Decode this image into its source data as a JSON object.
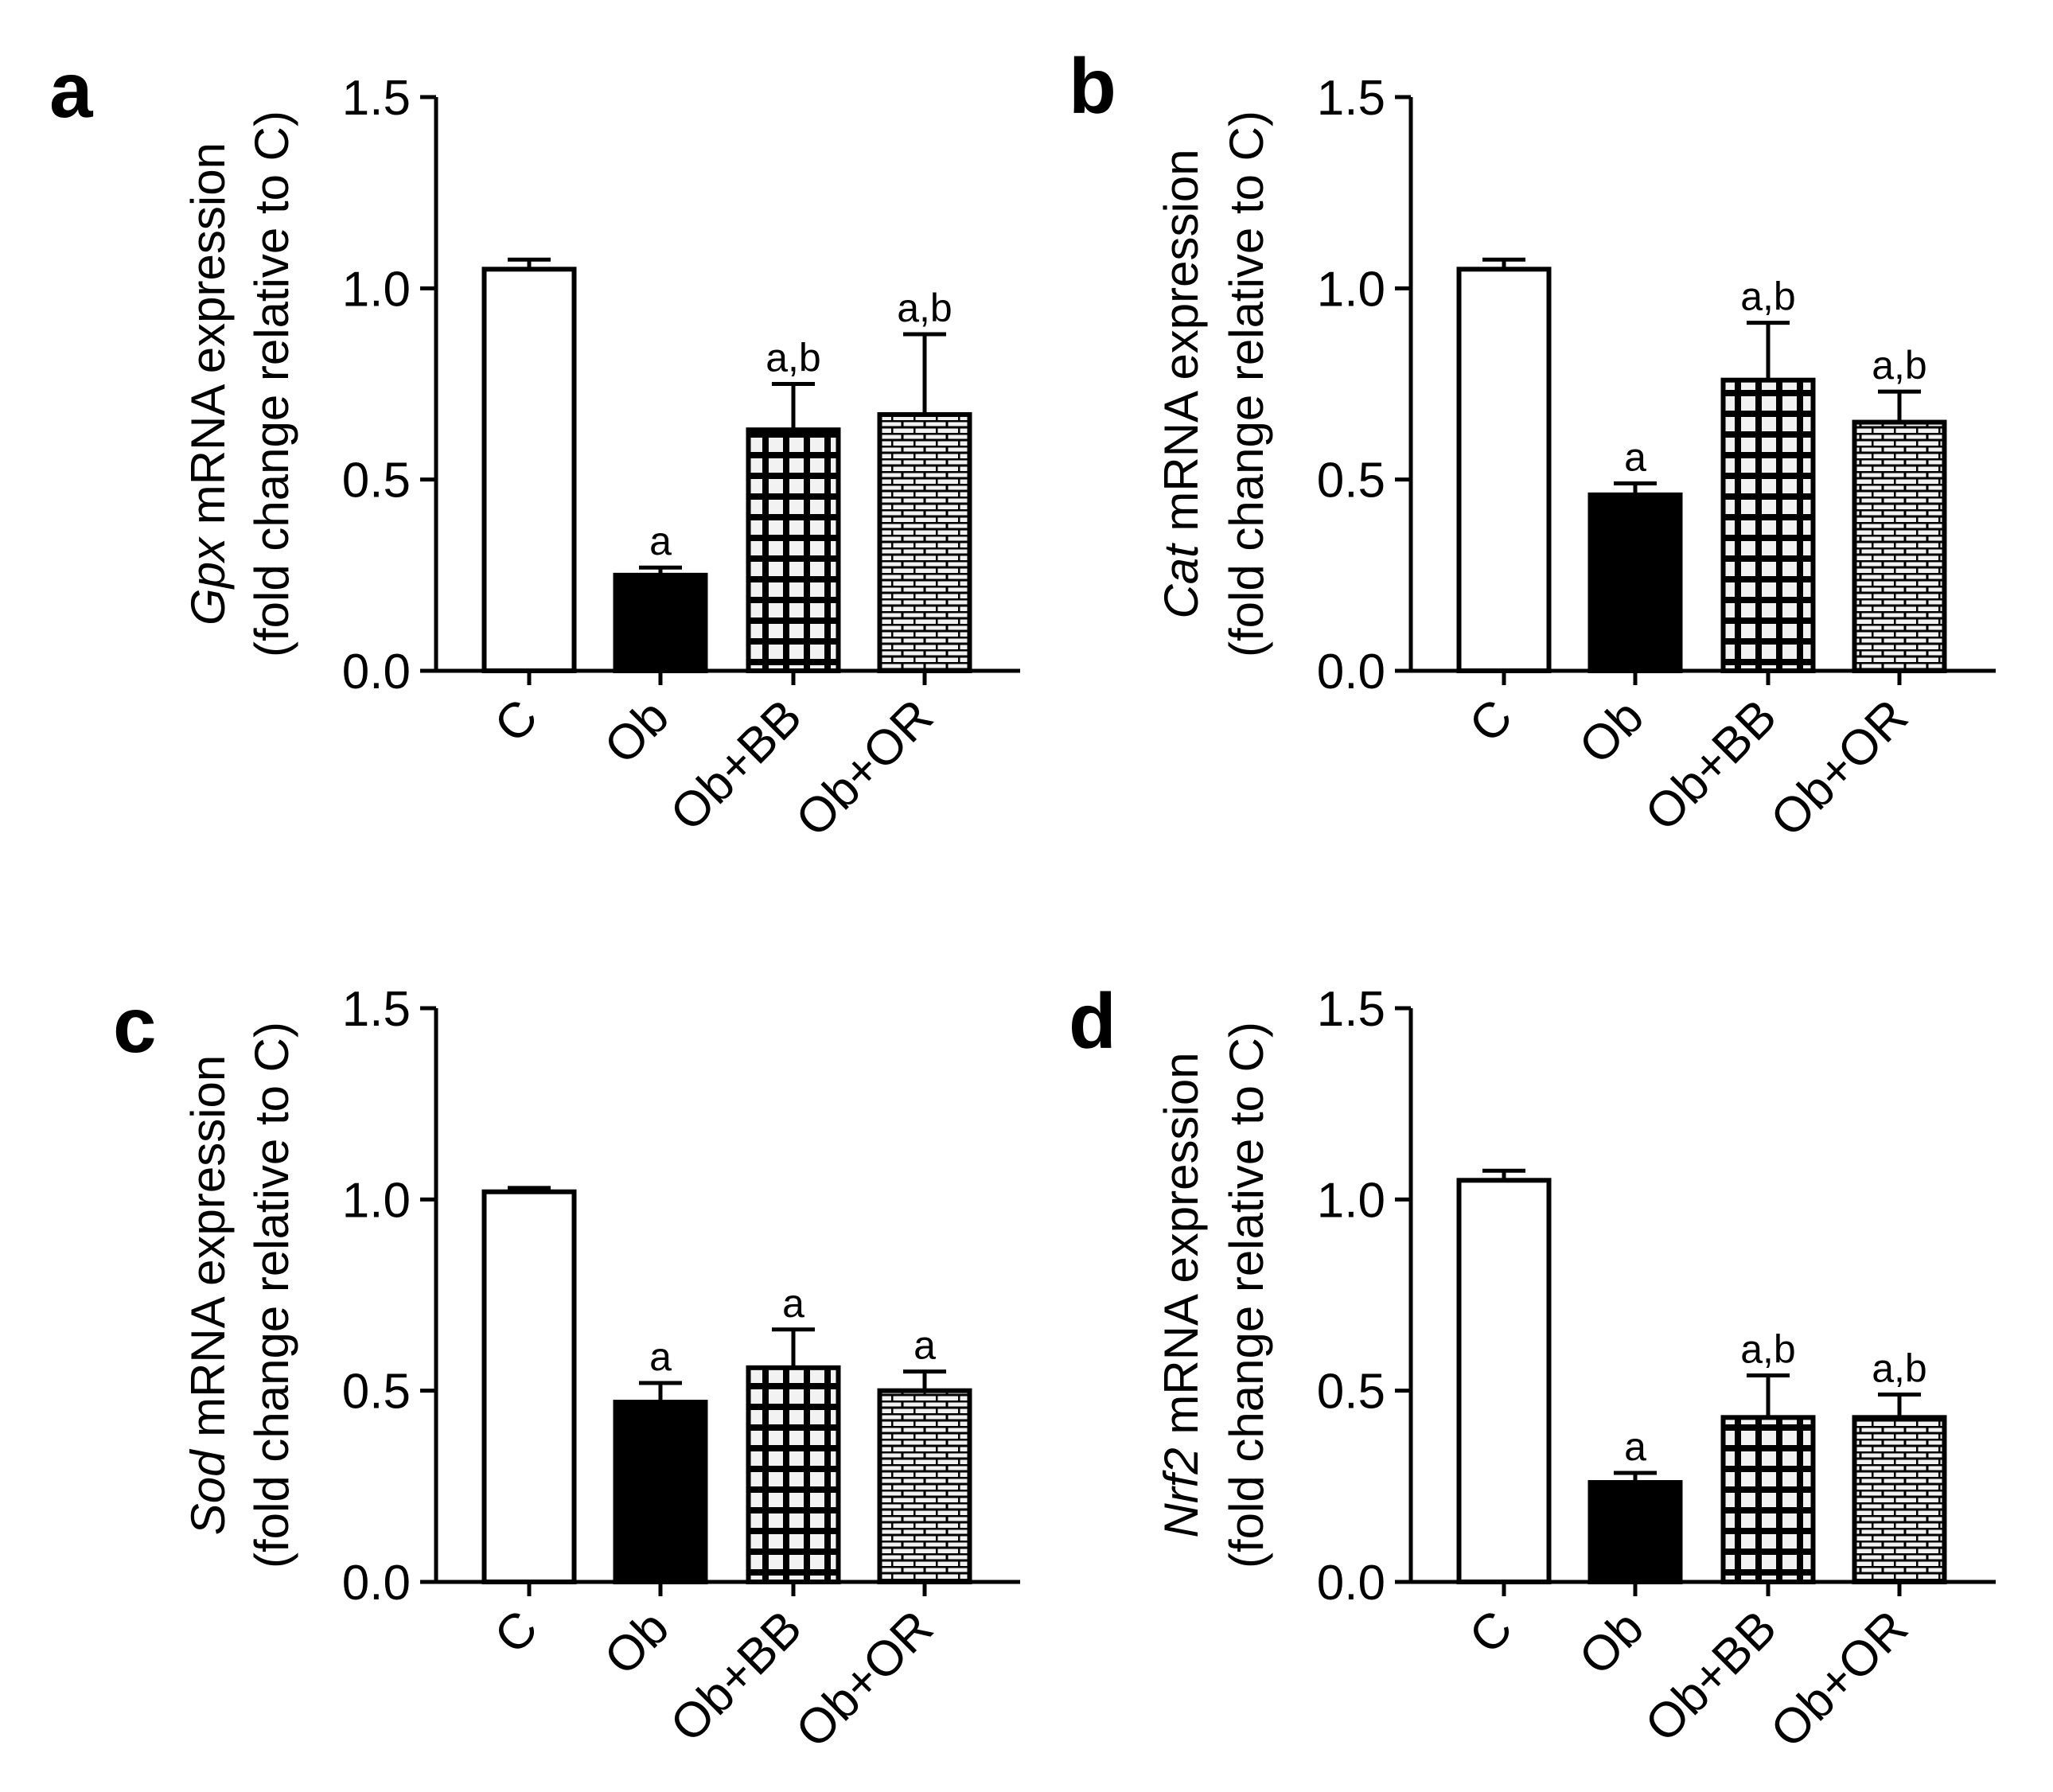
{
  "colors": {
    "axis": "#000000",
    "ink": "#000000",
    "hatch_bg": "#f2f2f2",
    "empty": "#ffffff"
  },
  "chart_data": [
    {
      "panel": "a",
      "type": "bar",
      "categories": [
        "C",
        "Ob",
        "Ob+BB",
        "Ob+OR"
      ],
      "fills": [
        "open",
        "solid",
        "grid",
        "brick"
      ],
      "values": [
        1.05,
        0.25,
        0.63,
        0.67
      ],
      "errors": [
        0.025,
        0.02,
        0.12,
        0.21
      ],
      "annotations": [
        "",
        "a",
        "a,b",
        "a,b"
      ],
      "ylabel_gene": "Gpx",
      "ylabel_rest": " mRNA expression",
      "ylabel_line2": "(fold change relative to C)",
      "ylim": [
        0,
        1.5
      ],
      "yticks": [
        "0.0",
        "0.5",
        "1.0",
        "1.5"
      ],
      "ytick_values": [
        0,
        0.5,
        1.0,
        1.5
      ]
    },
    {
      "panel": "b",
      "type": "bar",
      "categories": [
        "C",
        "Ob",
        "Ob+BB",
        "Ob+OR"
      ],
      "fills": [
        "open",
        "solid",
        "grid",
        "brick"
      ],
      "values": [
        1.05,
        0.46,
        0.76,
        0.65
      ],
      "errors": [
        0.025,
        0.03,
        0.15,
        0.08
      ],
      "annotations": [
        "",
        "a",
        "a,b",
        "a,b"
      ],
      "ylabel_gene": "Cat",
      "ylabel_rest": " mRNA expression",
      "ylabel_line2": "(fold change relative to C)",
      "ylim": [
        0,
        1.5
      ],
      "yticks": [
        "0.0",
        "0.5",
        "1.0",
        "1.5"
      ],
      "ytick_values": [
        0,
        0.5,
        1.0,
        1.5
      ]
    },
    {
      "panel": "c",
      "type": "bar",
      "categories": [
        "C",
        "Ob",
        "Ob+BB",
        "Ob+OR"
      ],
      "fills": [
        "open",
        "solid",
        "grid",
        "brick"
      ],
      "values": [
        1.02,
        0.47,
        0.56,
        0.5
      ],
      "errors": [
        0.01,
        0.05,
        0.1,
        0.05
      ],
      "annotations": [
        "",
        "a",
        "a",
        "a"
      ],
      "ylabel_gene": "Sod",
      "ylabel_rest": " mRNA expression",
      "ylabel_line2": "(fold change relative to C)",
      "ylim": [
        0,
        1.5
      ],
      "yticks": [
        "0.0",
        "0.5",
        "1.0",
        "1.5"
      ],
      "ytick_values": [
        0,
        0.5,
        1.0,
        1.5
      ]
    },
    {
      "panel": "d",
      "type": "bar",
      "categories": [
        "C",
        "Ob",
        "Ob+BB",
        "Ob+OR"
      ],
      "fills": [
        "open",
        "solid",
        "grid",
        "brick"
      ],
      "values": [
        1.05,
        0.26,
        0.43,
        0.43
      ],
      "errors": [
        0.025,
        0.025,
        0.11,
        0.06
      ],
      "annotations": [
        "",
        "a",
        "a,b",
        "a,b"
      ],
      "ylabel_gene": "Nrf2",
      "ylabel_rest": " mRNA expression",
      "ylabel_line2": "(fold change relative to C)",
      "ylim": [
        0,
        1.5
      ],
      "yticks": [
        "0.0",
        "0.5",
        "1.0",
        "1.5"
      ],
      "ytick_values": [
        0,
        0.5,
        1.0,
        1.5
      ]
    }
  ]
}
